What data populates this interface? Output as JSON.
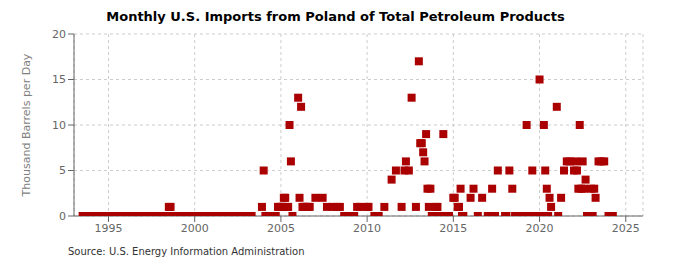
{
  "chart_data": {
    "type": "scatter",
    "title": "Monthly U.S. Imports from Poland of Total Petroleum Products",
    "y_label": "Thousand Barrels per Day",
    "annotations": [
      "Source: U.S. Energy Information Administration"
    ],
    "color": "#aa0000",
    "marker": "square",
    "grid": true,
    "xlim": [
      1993.0,
      2026.0
    ],
    "xticks": [
      1995,
      2000,
      2005,
      2010,
      2015,
      2020,
      2025
    ],
    "ylim": [
      0,
      20
    ],
    "yticks": [
      0,
      5,
      10,
      15,
      20
    ],
    "x": [
      1993.5,
      1993.6,
      1993.7,
      1993.8,
      1993.9,
      1994.0,
      1994.1,
      1994.2,
      1994.3,
      1994.4,
      1994.5,
      1994.6,
      1994.7,
      1994.8,
      1994.9,
      1995.0,
      1995.1,
      1995.2,
      1995.3,
      1995.4,
      1995.5,
      1995.6,
      1995.7,
      1995.8,
      1995.9,
      1996.0,
      1996.1,
      1996.2,
      1996.3,
      1996.4,
      1996.5,
      1996.6,
      1996.7,
      1996.8,
      1996.9,
      1997.0,
      1997.1,
      1997.2,
      1997.3,
      1997.4,
      1997.5,
      1997.6,
      1997.7,
      1997.8,
      1997.9,
      1998.0,
      1998.1,
      1998.2,
      1998.3,
      1998.4,
      1998.5,
      1998.6,
      1998.7,
      1998.8,
      1998.9,
      1999.0,
      1999.1,
      1999.2,
      1999.3,
      1999.4,
      1999.5,
      1999.6,
      1999.7,
      1999.8,
      1999.9,
      2000.0,
      2000.1,
      2000.2,
      2000.3,
      2000.4,
      2000.5,
      2000.6,
      2000.7,
      2000.8,
      2000.9,
      2001.0,
      2001.1,
      2001.2,
      2001.3,
      2001.4,
      2001.5,
      2001.6,
      2001.7,
      2001.8,
      2001.9,
      2002.0,
      2002.1,
      2002.2,
      2002.3,
      2002.4,
      2002.5,
      2002.6,
      2002.7,
      2002.8,
      2002.9,
      2003.0,
      2003.1,
      2003.2,
      2003.3,
      2003.9,
      2004.0,
      2004.1,
      2004.2,
      2004.3,
      2004.4,
      2004.5,
      2004.6,
      2004.7,
      2004.83,
      2004.92,
      2005.0,
      2005.08,
      2005.17,
      2005.25,
      2005.33,
      2005.42,
      2005.5,
      2005.58,
      2005.67,
      2006.0,
      2006.08,
      2006.17,
      2006.25,
      2006.33,
      2006.42,
      2006.5,
      2006.58,
      2006.67,
      2007.0,
      2007.42,
      2007.67,
      2008.0,
      2008.25,
      2008.42,
      2008.67,
      2009.0,
      2009.25,
      2009.42,
      2009.58,
      2010.0,
      2010.08,
      2010.42,
      2010.5,
      2010.58,
      2010.67,
      2011.0,
      2011.42,
      2011.67,
      2012.0,
      2012.17,
      2012.25,
      2012.42,
      2012.58,
      2012.83,
      2013.0,
      2013.08,
      2013.17,
      2013.25,
      2013.33,
      2013.42,
      2013.5,
      2013.58,
      2013.67,
      2013.75,
      2014.0,
      2014.08,
      2014.17,
      2014.25,
      2014.42,
      2014.58,
      2014.75,
      2015.0,
      2015.08,
      2015.25,
      2015.33,
      2015.42,
      2015.5,
      2015.58,
      2016.0,
      2016.17,
      2016.42,
      2016.67,
      2017.0,
      2017.25,
      2017.42,
      2017.58,
      2018.0,
      2018.08,
      2018.25,
      2018.42,
      2018.58,
      2018.75,
      2019.0,
      2019.25,
      2019.42,
      2019.58,
      2019.75,
      2020.0,
      2020.17,
      2020.25,
      2020.33,
      2020.42,
      2020.5,
      2020.58,
      2020.67,
      2021.0,
      2021.08,
      2021.25,
      2021.42,
      2021.58,
      2021.75,
      2022.0,
      2022.08,
      2022.17,
      2022.25,
      2022.33,
      2022.42,
      2022.5,
      2022.58,
      2022.67,
      2022.75,
      2023.0,
      2023.08,
      2023.17,
      2023.25,
      2023.42,
      2023.58,
      2023.75,
      2024.0,
      2024.08,
      2024.25
    ],
    "values": [
      0,
      0,
      0,
      0,
      0,
      0,
      0,
      0,
      0,
      0,
      0,
      0,
      0,
      0,
      0,
      0,
      0,
      0,
      0,
      0,
      0,
      0,
      0,
      0,
      0,
      0,
      0,
      0,
      0,
      0,
      0,
      0,
      0,
      0,
      0,
      0,
      0,
      0,
      0,
      0,
      0,
      0,
      0,
      0,
      0,
      0,
      0,
      0,
      0,
      0,
      1,
      1,
      0,
      0,
      0,
      0,
      0,
      0,
      0,
      0,
      0,
      0,
      0,
      0,
      0,
      0,
      0,
      0,
      0,
      0,
      0,
      0,
      0,
      0,
      0,
      0,
      0,
      0,
      0,
      0,
      0,
      0,
      0,
      0,
      0,
      0,
      0,
      0,
      0,
      0,
      0,
      0,
      0,
      0,
      0,
      0,
      0,
      0,
      0,
      1,
      5,
      0,
      0,
      0,
      0,
      0,
      0,
      0,
      1,
      1,
      1,
      1,
      2,
      2,
      1,
      1,
      10,
      6,
      0,
      13,
      2,
      12,
      1,
      1,
      1,
      1,
      1,
      1,
      2,
      2,
      1,
      1,
      1,
      1,
      0,
      0,
      0,
      1,
      1,
      1,
      1,
      0,
      0,
      0,
      0,
      1,
      4,
      5,
      1,
      5,
      6,
      5,
      13,
      1,
      17,
      8,
      8,
      7,
      6,
      9,
      3,
      1,
      3,
      0,
      1,
      1,
      0,
      0,
      9,
      0,
      0,
      2,
      2,
      1,
      1,
      3,
      0,
      0,
      2,
      3,
      0,
      2,
      0,
      3,
      0,
      5,
      0,
      0,
      5,
      3,
      0,
      0,
      0,
      10,
      0,
      5,
      0,
      15,
      0,
      10,
      5,
      3,
      0,
      2,
      1,
      12,
      0,
      2,
      5,
      6,
      6,
      5,
      6,
      5,
      3,
      10,
      3,
      6,
      3,
      4,
      0,
      3,
      0,
      3,
      2,
      6,
      6,
      6,
      0,
      0,
      0
    ]
  }
}
